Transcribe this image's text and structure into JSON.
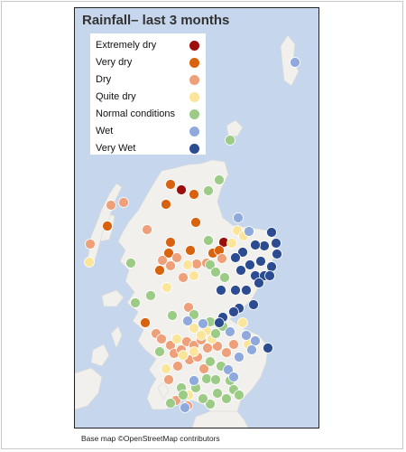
{
  "map": {
    "title": "Rainfall– last 3 months",
    "base_map": "OpenStreetMap",
    "region": "Scotland",
    "colors": {
      "sea": "#c6d6ec",
      "land": "#f1f0ec"
    }
  },
  "legend": {
    "items": [
      {
        "key": "extremely_dry",
        "label": "Extremely dry",
        "color": "#9b0e0b"
      },
      {
        "key": "very_dry",
        "label": "Very dry",
        "color": "#d8620e"
      },
      {
        "key": "dry",
        "label": "Dry",
        "color": "#eda07a"
      },
      {
        "key": "quite_dry",
        "label": "Quite dry",
        "color": "#fbe59a"
      },
      {
        "key": "normal",
        "label": "Normal conditions",
        "color": "#9ccb85"
      },
      {
        "key": "wet",
        "label": "Wet",
        "color": "#8fa9dc"
      },
      {
        "key": "very_wet",
        "label": "Very Wet",
        "color": "#2c4c92"
      }
    ]
  },
  "footer": {
    "credit": "Base map ©OpenStreetMap contributors"
  }
}
